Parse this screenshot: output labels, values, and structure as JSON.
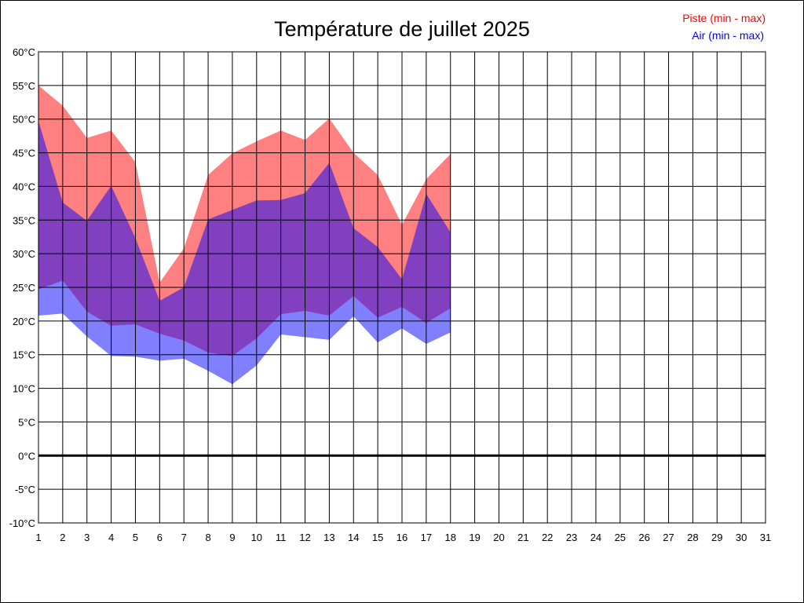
{
  "chart_data": {
    "type": "area",
    "title": "Température de juillet 2025",
    "xlabel": "",
    "ylabel": "",
    "x": [
      1,
      2,
      3,
      4,
      5,
      6,
      7,
      8,
      9,
      10,
      11,
      12,
      13,
      14,
      15,
      16,
      17,
      18
    ],
    "xlim": [
      1,
      31
    ],
    "xticks": [
      "1",
      "2",
      "3",
      "4",
      "5",
      "6",
      "7",
      "8",
      "9",
      "10",
      "11",
      "12",
      "13",
      "14",
      "15",
      "16",
      "17",
      "18",
      "19",
      "20",
      "21",
      "22",
      "23",
      "24",
      "25",
      "26",
      "27",
      "28",
      "29",
      "30",
      "31"
    ],
    "ylim": [
      -10,
      60
    ],
    "yticks": [
      "-10°C",
      "-5°C",
      "0°C",
      "5°C",
      "10°C",
      "15°C",
      "20°C",
      "25°C",
      "30°C",
      "35°C",
      "40°C",
      "45°C",
      "50°C",
      "55°C",
      "60°C"
    ],
    "grid": true,
    "legend_position": "top-right",
    "series": [
      {
        "name": "Piste (min - max)",
        "color": "#ff0000",
        "fill": "#ff8080",
        "min": [
          24.7,
          26.0,
          21.4,
          19.3,
          19.5,
          18.1,
          17.1,
          15.3,
          14.8,
          17.4,
          21.0,
          21.5,
          20.8,
          23.7,
          20.5,
          22.1,
          19.7,
          21.9
        ],
        "max": [
          55.0,
          52.0,
          47.2,
          48.3,
          43.6,
          25.7,
          30.8,
          41.7,
          44.9,
          46.7,
          48.3,
          46.9,
          50.1,
          45.0,
          41.7,
          34.3,
          41.1,
          44.8
        ]
      },
      {
        "name": "Air (min - max)",
        "color": "#0000ff",
        "fill": "#8080ff",
        "min": [
          20.8,
          21.1,
          17.7,
          14.8,
          14.7,
          14.1,
          14.4,
          12.6,
          10.6,
          13.4,
          18.0,
          17.6,
          17.2,
          20.7,
          16.8,
          18.9,
          16.6,
          18.3
        ],
        "max": [
          49.7,
          37.6,
          34.9,
          40.1,
          32.3,
          23.0,
          25.0,
          35.1,
          36.5,
          37.9,
          38.0,
          39.0,
          43.5,
          33.8,
          31.0,
          26.2,
          38.9,
          33.2
        ]
      }
    ],
    "overlap_color": "#8040c0"
  }
}
